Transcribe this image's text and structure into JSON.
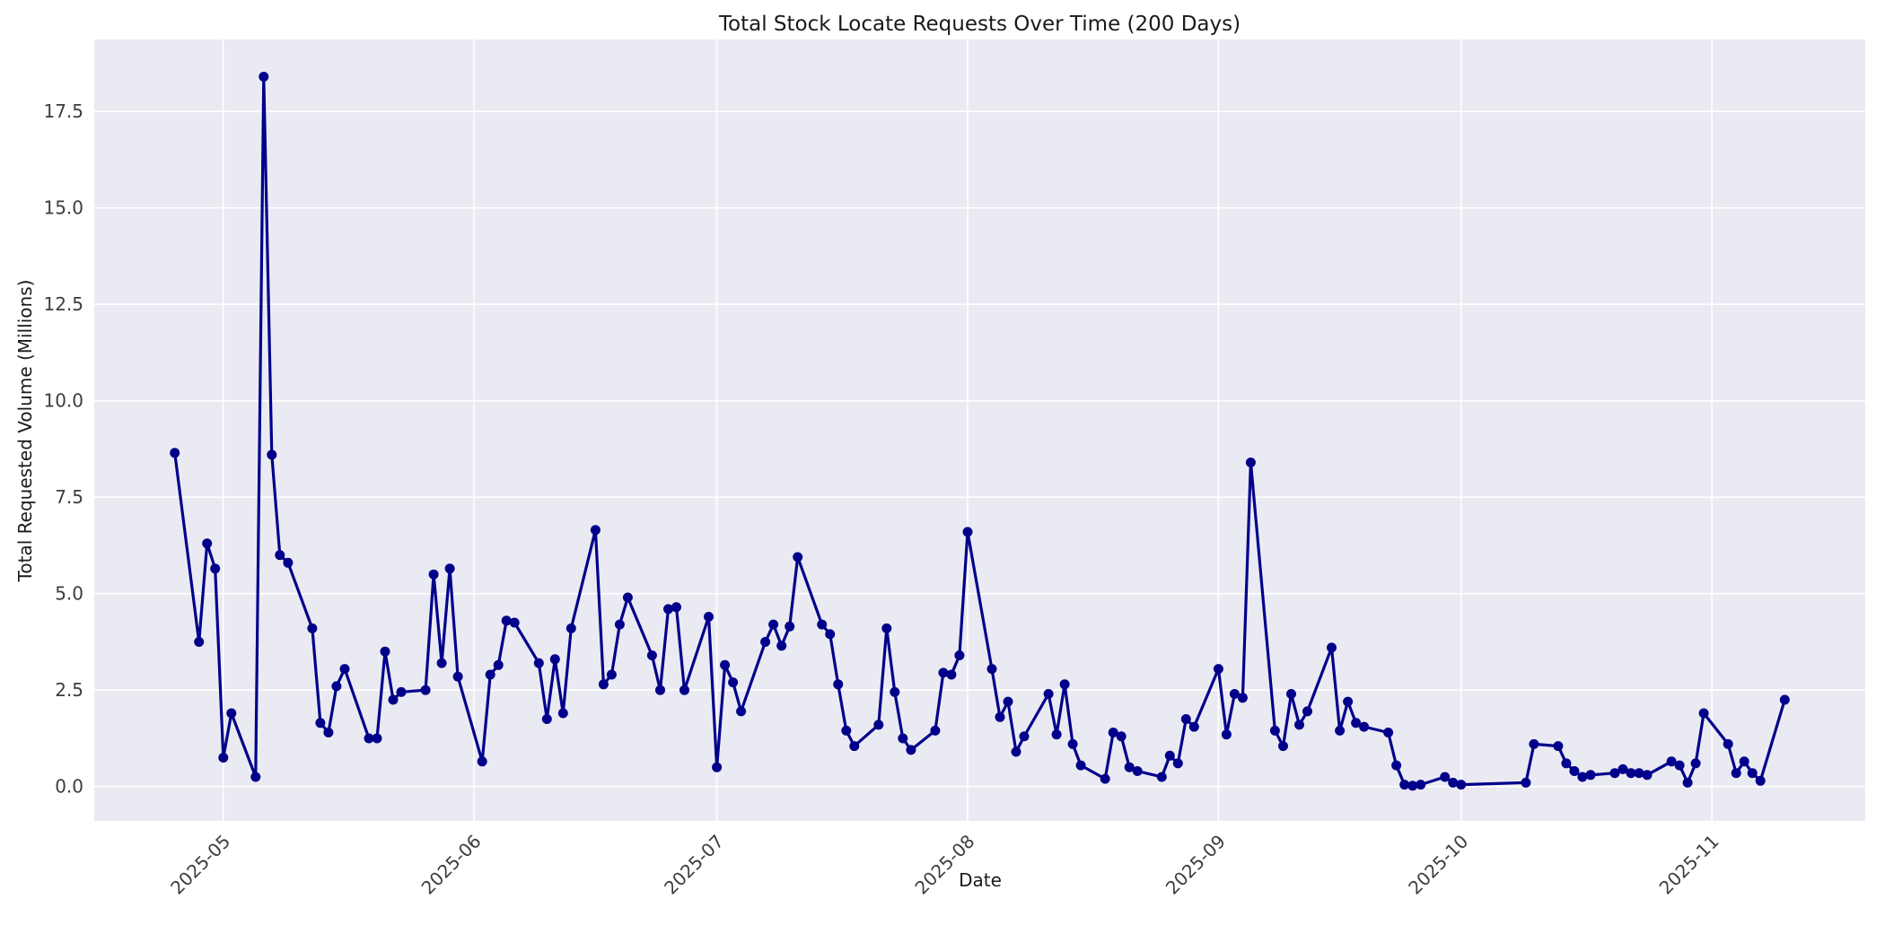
{
  "chart_data": {
    "type": "line",
    "title": "Total Stock Locate Requests Over Time (200 Days)",
    "xlabel": "Date",
    "ylabel": "Total Requested Volume (Millions)",
    "x": [
      "2025-04-25",
      "2025-04-28",
      "2025-04-29",
      "2025-04-30",
      "2025-05-01",
      "2025-05-02",
      "2025-05-05",
      "2025-05-06",
      "2025-05-07",
      "2025-05-08",
      "2025-05-09",
      "2025-05-12",
      "2025-05-13",
      "2025-05-14",
      "2025-05-15",
      "2025-05-16",
      "2025-05-19",
      "2025-05-20",
      "2025-05-21",
      "2025-05-22",
      "2025-05-23",
      "2025-05-26",
      "2025-05-27",
      "2025-05-28",
      "2025-05-29",
      "2025-05-30",
      "2025-06-02",
      "2025-06-03",
      "2025-06-04",
      "2025-06-05",
      "2025-06-06",
      "2025-06-09",
      "2025-06-10",
      "2025-06-11",
      "2025-06-12",
      "2025-06-13",
      "2025-06-16",
      "2025-06-17",
      "2025-06-18",
      "2025-06-19",
      "2025-06-20",
      "2025-06-23",
      "2025-06-24",
      "2025-06-25",
      "2025-06-26",
      "2025-06-27",
      "2025-06-30",
      "2025-07-01",
      "2025-07-02",
      "2025-07-03",
      "2025-07-04",
      "2025-07-07",
      "2025-07-08",
      "2025-07-09",
      "2025-07-10",
      "2025-07-11",
      "2025-07-14",
      "2025-07-15",
      "2025-07-16",
      "2025-07-17",
      "2025-07-18",
      "2025-07-21",
      "2025-07-22",
      "2025-07-23",
      "2025-07-24",
      "2025-07-25",
      "2025-07-28",
      "2025-07-29",
      "2025-07-30",
      "2025-07-31",
      "2025-08-01",
      "2025-08-04",
      "2025-08-05",
      "2025-08-06",
      "2025-08-07",
      "2025-08-08",
      "2025-08-11",
      "2025-08-12",
      "2025-08-13",
      "2025-08-14",
      "2025-08-15",
      "2025-08-18",
      "2025-08-19",
      "2025-08-20",
      "2025-08-21",
      "2025-08-22",
      "2025-08-25",
      "2025-08-26",
      "2025-08-27",
      "2025-08-28",
      "2025-08-29",
      "2025-09-01",
      "2025-09-02",
      "2025-09-03",
      "2025-09-04",
      "2025-09-05",
      "2025-09-08",
      "2025-09-09",
      "2025-09-10",
      "2025-09-11",
      "2025-09-12",
      "2025-09-15",
      "2025-09-16",
      "2025-09-17",
      "2025-09-18",
      "2025-09-19",
      "2025-09-22",
      "2025-09-23",
      "2025-09-24",
      "2025-09-25",
      "2025-09-26",
      "2025-09-29",
      "2025-09-30",
      "2025-10-01",
      "2025-10-09",
      "2025-10-10",
      "2025-10-13",
      "2025-10-14",
      "2025-10-15",
      "2025-10-16",
      "2025-10-17",
      "2025-10-20",
      "2025-10-21",
      "2025-10-22",
      "2025-10-23",
      "2025-10-24",
      "2025-10-27",
      "2025-10-28",
      "2025-10-29",
      "2025-10-30",
      "2025-10-31",
      "2025-11-03",
      "2025-11-04",
      "2025-11-05",
      "2025-11-06",
      "2025-11-07",
      "2025-11-10"
    ],
    "values": [
      8.65,
      3.75,
      6.3,
      5.65,
      0.75,
      1.9,
      0.25,
      18.4,
      8.6,
      6.0,
      5.8,
      4.1,
      1.65,
      1.4,
      2.6,
      3.05,
      1.25,
      1.25,
      3.5,
      2.25,
      2.45,
      2.5,
      5.5,
      3.2,
      5.65,
      2.85,
      0.65,
      2.9,
      3.15,
      4.3,
      4.25,
      3.2,
      1.75,
      3.3,
      1.9,
      4.1,
      6.65,
      2.65,
      2.9,
      4.2,
      4.9,
      3.4,
      2.5,
      4.6,
      4.65,
      2.5,
      4.4,
      0.5,
      3.15,
      2.7,
      1.95,
      3.75,
      4.2,
      3.65,
      4.15,
      5.95,
      4.2,
      3.95,
      2.65,
      1.45,
      1.05,
      1.6,
      4.1,
      2.45,
      1.25,
      0.95,
      1.45,
      2.95,
      2.9,
      3.4,
      6.6,
      3.05,
      1.8,
      2.2,
      0.9,
      1.3,
      2.4,
      1.35,
      2.65,
      1.1,
      0.55,
      0.2,
      1.4,
      1.3,
      0.5,
      0.4,
      0.25,
      0.8,
      0.6,
      1.75,
      1.55,
      3.05,
      1.35,
      2.4,
      2.3,
      8.4,
      1.45,
      1.05,
      2.4,
      1.6,
      1.95,
      3.6,
      1.45,
      2.2,
      1.65,
      1.55,
      1.4,
      0.55,
      0.05,
      0.02,
      0.05,
      0.25,
      0.1,
      0.05,
      0.1,
      1.1,
      1.05,
      0.6,
      0.4,
      0.25,
      0.3,
      0.35,
      0.45,
      0.35,
      0.35,
      0.3,
      0.65,
      0.55,
      0.1,
      0.6,
      1.9,
      1.1,
      0.35,
      0.65,
      0.35,
      0.15,
      2.25
    ],
    "xticks": [
      {
        "date": "2025-05-01",
        "label": "2025-05"
      },
      {
        "date": "2025-06-01",
        "label": "2025-06"
      },
      {
        "date": "2025-07-01",
        "label": "2025-07"
      },
      {
        "date": "2025-08-01",
        "label": "2025-08"
      },
      {
        "date": "2025-09-01",
        "label": "2025-09"
      },
      {
        "date": "2025-10-01",
        "label": "2025-10"
      },
      {
        "date": "2025-11-01",
        "label": "2025-11"
      }
    ],
    "yticks": [
      {
        "value": 0.0,
        "label": "0.0"
      },
      {
        "value": 2.5,
        "label": "2.5"
      },
      {
        "value": 5.0,
        "label": "5.0"
      },
      {
        "value": 7.5,
        "label": "7.5"
      },
      {
        "value": 10.0,
        "label": "10.0"
      },
      {
        "value": 12.5,
        "label": "12.5"
      },
      {
        "value": 15.0,
        "label": "15.0"
      },
      {
        "value": 17.5,
        "label": "17.5"
      }
    ],
    "ylim": [
      -0.9,
      19.36
    ],
    "grid": true,
    "legend": "none",
    "line_color": "#00008b",
    "marker": "circle",
    "plot_bg_color": "#eaeaf2",
    "grid_color": "#ffffff",
    "figure_bg_color": "#ffffff"
  }
}
